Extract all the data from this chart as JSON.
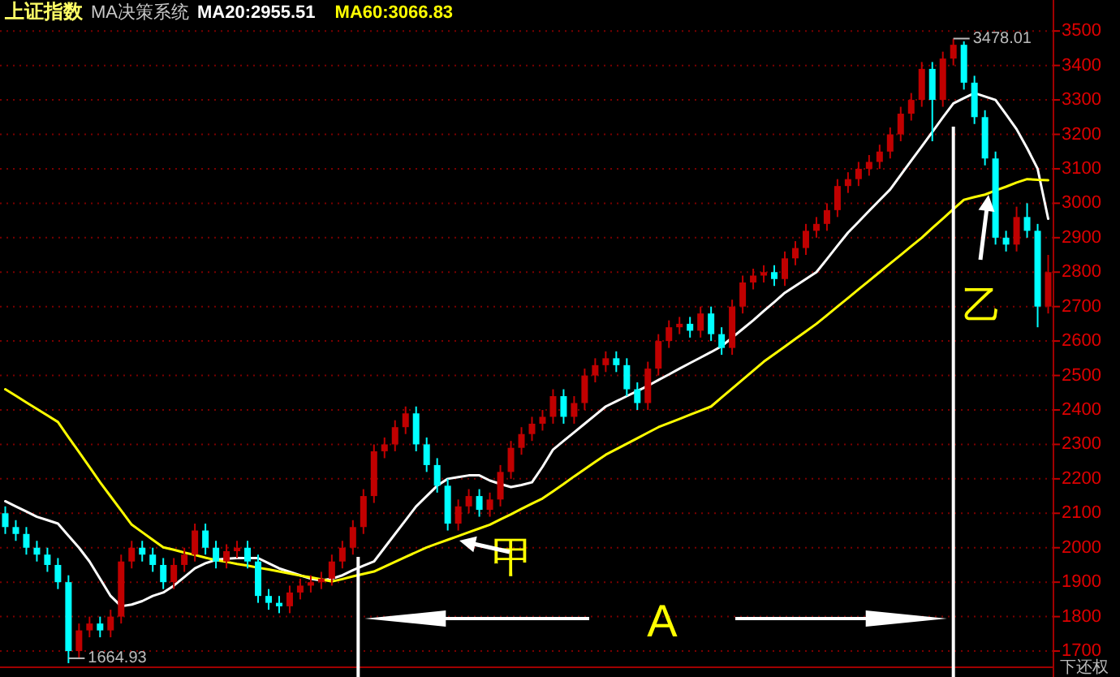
{
  "chart_data": {
    "type": "candlestick",
    "title": "上证指数",
    "subtitle": "MA决策系统",
    "categories": [
      null,
      null,
      null,
      null,
      null,
      null,
      null,
      null,
      null,
      null,
      null,
      null,
      null,
      null,
      null,
      null,
      null,
      null,
      null,
      null,
      null,
      null,
      null,
      null,
      null,
      null,
      null,
      null,
      null,
      null,
      null,
      null,
      null,
      null,
      null,
      null,
      null,
      null,
      null,
      null,
      null,
      null,
      null,
      null,
      null,
      null,
      null,
      null,
      null,
      null,
      null,
      null,
      null,
      null,
      null,
      null,
      null,
      null,
      null,
      null,
      null,
      null,
      null,
      null,
      null,
      null,
      null,
      null,
      null,
      null,
      null,
      null,
      null,
      null,
      null,
      null,
      null,
      null,
      null,
      null,
      null,
      null,
      null,
      null,
      null,
      null,
      null,
      null,
      null,
      null,
      null,
      null,
      null,
      null,
      null,
      null,
      null,
      null,
      null,
      null
    ],
    "ohlc": [
      [
        2100,
        2120,
        2040,
        2060
      ],
      [
        2060,
        2080,
        2020,
        2040
      ],
      [
        2040,
        2060,
        1980,
        2000
      ],
      [
        2000,
        2020,
        1960,
        1980
      ],
      [
        1980,
        2000,
        1930,
        1950
      ],
      [
        1950,
        1970,
        1880,
        1900
      ],
      [
        1900,
        1920,
        1664.93,
        1700
      ],
      [
        1700,
        1780,
        1680,
        1760
      ],
      [
        1760,
        1800,
        1740,
        1780
      ],
      [
        1780,
        1800,
        1740,
        1760
      ],
      [
        1760,
        1820,
        1740,
        1800
      ],
      [
        1800,
        1980,
        1780,
        1960
      ],
      [
        1960,
        2020,
        1940,
        2000
      ],
      [
        2000,
        2020,
        1960,
        1980
      ],
      [
        1980,
        2000,
        1930,
        1950
      ],
      [
        1950,
        1970,
        1880,
        1900
      ],
      [
        1900,
        1970,
        1880,
        1950
      ],
      [
        1950,
        2000,
        1930,
        1980
      ],
      [
        1980,
        2070,
        1960,
        2050
      ],
      [
        2050,
        2070,
        1980,
        2000
      ],
      [
        2000,
        2020,
        1940,
        1960
      ],
      [
        1960,
        2010,
        1940,
        1990
      ],
      [
        1990,
        2020,
        1970,
        2000
      ],
      [
        2000,
        2020,
        1940,
        1960
      ],
      [
        1960,
        1980,
        1840,
        1860
      ],
      [
        1860,
        1880,
        1820,
        1840
      ],
      [
        1840,
        1860,
        1810,
        1830
      ],
      [
        1830,
        1890,
        1810,
        1870
      ],
      [
        1870,
        1910,
        1850,
        1890
      ],
      [
        1890,
        1920,
        1870,
        1900
      ],
      [
        1900,
        1930,
        1880,
        1910
      ],
      [
        1910,
        1980,
        1890,
        1960
      ],
      [
        1960,
        2020,
        1940,
        2000
      ],
      [
        2000,
        2080,
        1980,
        2060
      ],
      [
        2060,
        2170,
        2040,
        2150
      ],
      [
        2150,
        2300,
        2130,
        2280
      ],
      [
        2280,
        2320,
        2260,
        2300
      ],
      [
        2300,
        2370,
        2280,
        2350
      ],
      [
        2350,
        2410,
        2330,
        2390
      ],
      [
        2390,
        2410,
        2280,
        2300
      ],
      [
        2300,
        2320,
        2220,
        2240
      ],
      [
        2240,
        2260,
        2160,
        2180
      ],
      [
        2180,
        2200,
        2050,
        2070
      ],
      [
        2070,
        2140,
        2050,
        2120
      ],
      [
        2120,
        2170,
        2100,
        2150
      ],
      [
        2150,
        2170,
        2090,
        2110
      ],
      [
        2110,
        2160,
        2090,
        2140
      ],
      [
        2140,
        2240,
        2120,
        2220
      ],
      [
        2220,
        2310,
        2200,
        2290
      ],
      [
        2290,
        2350,
        2270,
        2330
      ],
      [
        2330,
        2380,
        2310,
        2360
      ],
      [
        2360,
        2400,
        2340,
        2380
      ],
      [
        2380,
        2460,
        2360,
        2440
      ],
      [
        2440,
        2460,
        2360,
        2380
      ],
      [
        2380,
        2440,
        2360,
        2420
      ],
      [
        2420,
        2520,
        2400,
        2500
      ],
      [
        2500,
        2550,
        2480,
        2530
      ],
      [
        2530,
        2570,
        2510,
        2550
      ],
      [
        2550,
        2570,
        2510,
        2530
      ],
      [
        2530,
        2550,
        2440,
        2460
      ],
      [
        2460,
        2480,
        2400,
        2420
      ],
      [
        2420,
        2540,
        2400,
        2520
      ],
      [
        2520,
        2620,
        2500,
        2600
      ],
      [
        2600,
        2660,
        2580,
        2640
      ],
      [
        2640,
        2670,
        2620,
        2650
      ],
      [
        2650,
        2670,
        2610,
        2630
      ],
      [
        2630,
        2700,
        2610,
        2680
      ],
      [
        2680,
        2700,
        2600,
        2620
      ],
      [
        2620,
        2640,
        2560,
        2580
      ],
      [
        2580,
        2720,
        2560,
        2700
      ],
      [
        2700,
        2790,
        2680,
        2770
      ],
      [
        2770,
        2810,
        2750,
        2790
      ],
      [
        2790,
        2820,
        2770,
        2800
      ],
      [
        2800,
        2820,
        2760,
        2780
      ],
      [
        2780,
        2860,
        2760,
        2840
      ],
      [
        2840,
        2890,
        2820,
        2870
      ],
      [
        2870,
        2940,
        2850,
        2920
      ],
      [
        2920,
        2960,
        2900,
        2940
      ],
      [
        2940,
        3000,
        2920,
        2980
      ],
      [
        2980,
        3070,
        2960,
        3050
      ],
      [
        3050,
        3090,
        3030,
        3070
      ],
      [
        3070,
        3120,
        3050,
        3100
      ],
      [
        3100,
        3140,
        3080,
        3120
      ],
      [
        3120,
        3170,
        3100,
        3150
      ],
      [
        3150,
        3220,
        3130,
        3200
      ],
      [
        3200,
        3280,
        3180,
        3260
      ],
      [
        3260,
        3320,
        3240,
        3300
      ],
      [
        3300,
        3410,
        3280,
        3390
      ],
      [
        3390,
        3410,
        3180,
        3300
      ],
      [
        3300,
        3440,
        3280,
        3420
      ],
      [
        3420,
        3478.01,
        3400,
        3460
      ],
      [
        3460,
        3470,
        3330,
        3350
      ],
      [
        3350,
        3370,
        3230,
        3250
      ],
      [
        3250,
        3270,
        3110,
        3130
      ],
      [
        3130,
        3150,
        2880,
        2900
      ],
      [
        2900,
        2920,
        2860,
        2880
      ],
      [
        2880,
        2990,
        2860,
        2960
      ],
      [
        2960,
        3000,
        2900,
        2920
      ],
      [
        2920,
        2940,
        2640,
        2700
      ],
      [
        2700,
        2850,
        2680,
        2800
      ]
    ],
    "series": [
      {
        "name": "MA20:2955.51",
        "type": "line",
        "color": "#ffffff",
        "values": [
          2135,
          2120,
          2105,
          2090,
          2080,
          2070,
          2035,
          2000,
          1960,
          1910,
          1860,
          1830,
          1835,
          1845,
          1860,
          1870,
          1890,
          1915,
          1940,
          1955,
          1965,
          1968,
          1970,
          1970,
          1970,
          1955,
          1940,
          1930,
          1920,
          1910,
          1905,
          1910,
          1920,
          1935,
          1948,
          1960,
          2000,
          2040,
          2080,
          2120,
          2150,
          2180,
          2200,
          2205,
          2210,
          2210,
          2195,
          2185,
          2176,
          2182,
          2190,
          2235,
          2285,
          2310,
          2335,
          2360,
          2385,
          2410,
          2425,
          2440,
          2455,
          2470,
          2487,
          2503,
          2520,
          2536,
          2552,
          2568,
          2585,
          2610,
          2635,
          2660,
          2687,
          2713,
          2740,
          2760,
          2780,
          2800,
          2838,
          2877,
          2915,
          2946,
          2978,
          3009,
          3040,
          3082,
          3124,
          3165,
          3207,
          3249,
          3290,
          3305,
          3320,
          3310,
          3300,
          3258,
          3215,
          3160,
          3100,
          2955
        ]
      },
      {
        "name": "MA60:3066.83",
        "type": "line",
        "color": "#ffff00",
        "values": [
          2460,
          2441,
          2422,
          2403,
          2384,
          2365,
          2321,
          2278,
          2234,
          2190,
          2149,
          2108,
          2067,
          2045,
          2023,
          2001,
          1994,
          1986,
          1979,
          1971,
          1964,
          1959,
          1953,
          1948,
          1942,
          1937,
          1931,
          1925,
          1919,
          1914,
          1908,
          1902,
          1909,
          1917,
          1924,
          1931,
          1945,
          1959,
          1973,
          1987,
          2001,
          2012,
          2023,
          2034,
          2045,
          2056,
          2067,
          2082,
          2097,
          2113,
          2128,
          2143,
          2164,
          2185,
          2207,
          2228,
          2249,
          2270,
          2286,
          2302,
          2318,
          2334,
          2350,
          2362,
          2374,
          2386,
          2398,
          2410,
          2436,
          2462,
          2488,
          2514,
          2540,
          2562,
          2584,
          2606,
          2628,
          2650,
          2675,
          2700,
          2725,
          2750,
          2775,
          2800,
          2825,
          2850,
          2875,
          2900,
          2928,
          2955,
          2983,
          3010,
          3018,
          3025,
          3037,
          3048,
          3060,
          3070,
          3068,
          3067
        ]
      }
    ],
    "ylim": [
      1653,
      3590
    ],
    "yticks": [
      1700,
      1800,
      1900,
      2000,
      2100,
      2200,
      2300,
      2400,
      2500,
      2600,
      2700,
      2800,
      2900,
      3000,
      3100,
      3200,
      3300,
      3400,
      3500
    ],
    "grid": "y",
    "legend": "top left",
    "marker": "none",
    "annotations": [
      "3478.01",
      "1664.93",
      "甲",
      "乙",
      "A",
      "下还权"
    ]
  }
}
